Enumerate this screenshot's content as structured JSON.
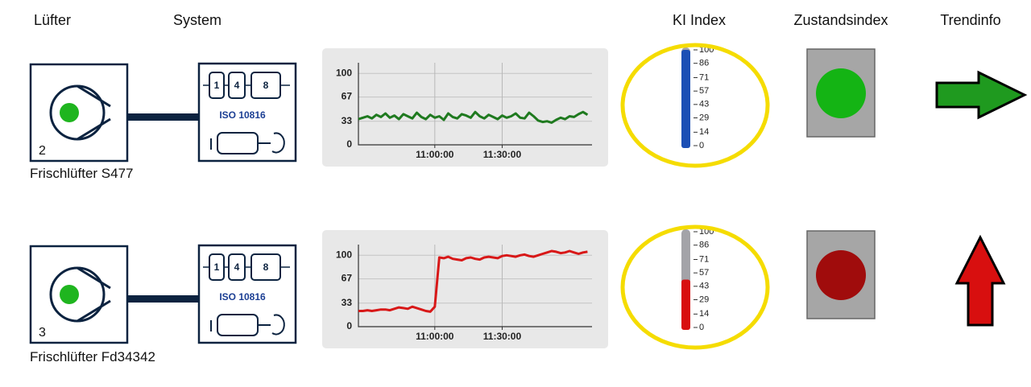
{
  "header": {
    "columns": [
      "Lüfter",
      "System",
      "KI Index",
      "Zustandsindex",
      "Trendinfo"
    ]
  },
  "rows": [
    {
      "fan_number": 2,
      "name": "Frischlüfter S477",
      "system": {
        "blocks": [
          "1",
          "4",
          "8"
        ],
        "standard": "ISO 10816"
      },
      "chart": {
        "type": "line",
        "color": "#1f7a1f",
        "values": [
          36,
          38,
          40,
          37,
          42,
          39,
          44,
          38,
          41,
          36,
          43,
          40,
          37,
          45,
          39,
          36,
          42,
          38,
          40,
          35,
          44,
          39,
          37,
          43,
          41,
          38,
          46,
          40,
          37,
          42,
          39,
          36,
          41,
          38,
          40,
          44,
          38,
          37,
          45,
          40,
          34,
          32,
          33,
          31,
          35,
          38,
          36,
          40,
          39,
          43,
          46,
          42
        ],
        "xlim": [
          0,
          52
        ],
        "xticks": [
          {
            "value": 17,
            "label": "11:00:00"
          },
          {
            "value": 32,
            "label": "11:30:00"
          }
        ],
        "ylim": [
          0,
          115
        ],
        "yticks": [
          0,
          33,
          67,
          100
        ],
        "grid": true
      },
      "ki_index": {
        "value": 100,
        "color": "#1b4fb5",
        "ylim": [
          0,
          100
        ],
        "ticks": [
          100,
          86,
          71,
          57,
          43,
          29,
          14,
          0
        ]
      },
      "status_color": "#14b414",
      "trend": {
        "direction": "right",
        "color": "#1f9a1f"
      }
    },
    {
      "fan_number": 3,
      "name": "Frischlüfter Fd34342",
      "system": {
        "blocks": [
          "1",
          "4",
          "8"
        ],
        "standard": "ISO 10816"
      },
      "chart": {
        "type": "line",
        "color": "#d81818",
        "values": [
          22,
          22,
          23,
          22,
          23,
          24,
          24,
          23,
          25,
          27,
          26,
          25,
          28,
          26,
          24,
          22,
          21,
          28,
          97,
          96,
          98,
          95,
          94,
          93,
          96,
          97,
          95,
          94,
          97,
          98,
          97,
          96,
          99,
          100,
          99,
          98,
          100,
          101,
          99,
          98,
          100,
          102,
          104,
          106,
          105,
          103,
          104,
          106,
          104,
          102,
          104,
          105
        ],
        "xlim": [
          0,
          52
        ],
        "xticks": [
          {
            "value": 17,
            "label": "11:00:00"
          },
          {
            "value": 32,
            "label": "11:30:00"
          }
        ],
        "ylim": [
          0,
          115
        ],
        "yticks": [
          0,
          33,
          67,
          100
        ],
        "grid": true
      },
      "ki_index": {
        "value": 50,
        "color": "#d80f0f",
        "ylim": [
          0,
          100
        ],
        "ticks": [
          100,
          86,
          71,
          57,
          43,
          29,
          14,
          0
        ]
      },
      "status_color": "#a00c0c",
      "trend": {
        "direction": "up",
        "color": "#d80f0f"
      }
    }
  ]
}
